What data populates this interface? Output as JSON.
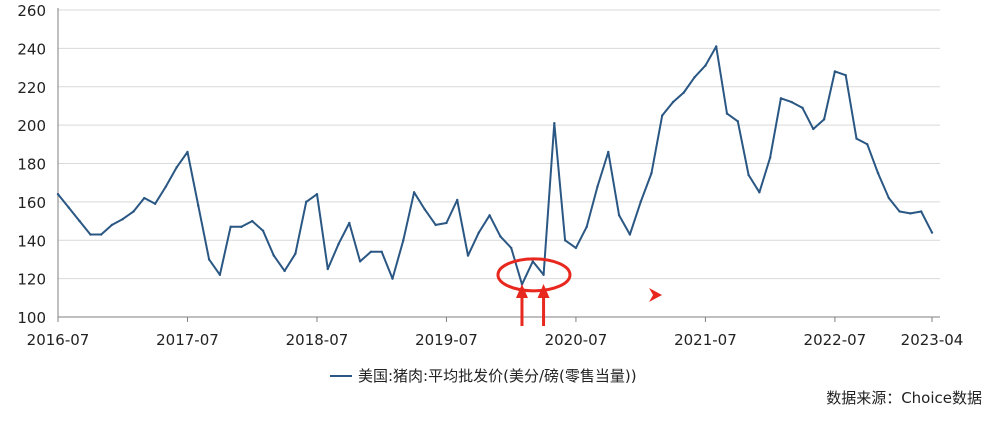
{
  "colors": {
    "series": "#2a5783",
    "grid": "#d9d9d9",
    "axis": "#7f7f7f",
    "annotation": "#e8281e"
  },
  "legend_label": "美国:猪肉:平均批发价(美分/磅(零售当量))",
  "source": "数据来源：Choice数据",
  "chart_data": {
    "type": "line",
    "title": "",
    "xlabel": "",
    "ylabel": "",
    "ylim": [
      100,
      260
    ],
    "yticks": [
      "100",
      "120",
      "140",
      "160",
      "180",
      "200",
      "220",
      "240",
      "260"
    ],
    "xticks": [
      "2016-07",
      "2017-07",
      "2018-07",
      "2019-07",
      "2020-07",
      "2021-07",
      "2022-07",
      "2023-04"
    ],
    "grid": "horizontal",
    "legend_position": "bottom",
    "series": [
      {
        "name": "美国:猪肉:平均批发价(美分/磅(零售当量))",
        "x": [
          "2016-07",
          "2016-08",
          "2016-09",
          "2016-10",
          "2016-11",
          "2016-12",
          "2017-01",
          "2017-02",
          "2017-03",
          "2017-04",
          "2017-05",
          "2017-06",
          "2017-07",
          "2017-08",
          "2017-09",
          "2017-10",
          "2017-11",
          "2017-12",
          "2018-01",
          "2018-02",
          "2018-03",
          "2018-04",
          "2018-05",
          "2018-06",
          "2018-07",
          "2018-08",
          "2018-09",
          "2018-10",
          "2018-11",
          "2018-12",
          "2019-01",
          "2019-02",
          "2019-03",
          "2019-04",
          "2019-05",
          "2019-06",
          "2019-07",
          "2019-08",
          "2019-09",
          "2019-10",
          "2019-11",
          "2019-12",
          "2020-01",
          "2020-02",
          "2020-03",
          "2020-04",
          "2020-05",
          "2020-06",
          "2020-07",
          "2020-08",
          "2020-09",
          "2020-10",
          "2020-11",
          "2020-12",
          "2021-01",
          "2021-02",
          "2021-03",
          "2021-04",
          "2021-05",
          "2021-06",
          "2021-07",
          "2021-08",
          "2021-09",
          "2021-10",
          "2021-11",
          "2021-12",
          "2022-01",
          "2022-02",
          "2022-03",
          "2022-04",
          "2022-05",
          "2022-06",
          "2022-07",
          "2022-08",
          "2022-09",
          "2022-10",
          "2022-11",
          "2022-12",
          "2023-01",
          "2023-02",
          "2023-03",
          "2023-04"
        ],
        "values": [
          164,
          157,
          150,
          143,
          143,
          148,
          151,
          155,
          162,
          159,
          168,
          178,
          186,
          158,
          130,
          122,
          147,
          147,
          150,
          145,
          132,
          124,
          133,
          160,
          164,
          125,
          138,
          149,
          129,
          134,
          134,
          120,
          140,
          165,
          156,
          148,
          149,
          161,
          132,
          144,
          153,
          142,
          136,
          117,
          129,
          122,
          201,
          140,
          136,
          147,
          168,
          186,
          153,
          143,
          160,
          175,
          205,
          212,
          217,
          225,
          231,
          241,
          206,
          202,
          174,
          165,
          183,
          214,
          212,
          209,
          198,
          203,
          228,
          226,
          193,
          190,
          175,
          162,
          155,
          154,
          155,
          144
        ]
      }
    ],
    "annotations": {
      "ellipse_center": [
        "2020-02",
        123
      ],
      "arrows_at": [
        "2020-02",
        "2020-04"
      ],
      "small_arrow_at": [
        "2021-04",
        112
      ]
    }
  }
}
